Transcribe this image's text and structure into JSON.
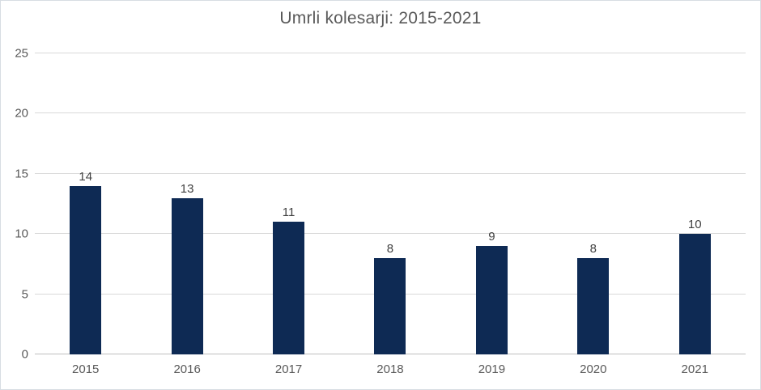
{
  "chart_data": {
    "type": "bar",
    "title": "Umrli kolesarji: 2015-2021",
    "categories": [
      "2015",
      "2016",
      "2017",
      "2018",
      "2019",
      "2020",
      "2021"
    ],
    "values": [
      14,
      13,
      11,
      8,
      9,
      8,
      10
    ],
    "xlabel": "",
    "ylabel": "",
    "ylim": [
      0,
      25
    ],
    "yticks": [
      0,
      5,
      10,
      15,
      20,
      25
    ],
    "grid": "horizontal",
    "legend": "none",
    "bar_color": "#0e2a54",
    "title_color": "#595959",
    "tick_label_color": "#595959",
    "data_label_color": "#404040",
    "gridline_color": "#d9d9d9",
    "axis_line_color": "#bfbfbf",
    "frame_border_color": "#d7dde3"
  }
}
